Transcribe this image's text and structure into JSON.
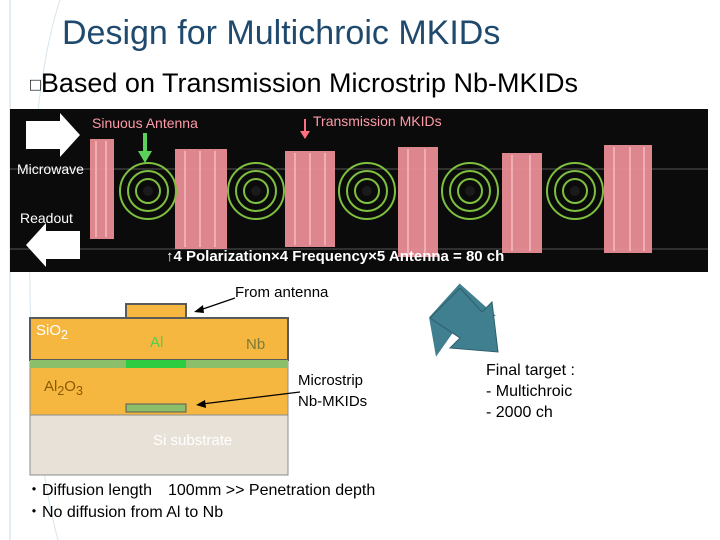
{
  "slide": {
    "title": "Design for Multichroic MKIDs",
    "subtitle_bullet": "□",
    "subtitle": "Based on Transmission Microstrip Nb-MKIDs"
  },
  "photo": {
    "label_antenna": "Sinuous Antenna",
    "label_mkids": "Transmission MKIDs",
    "label_microwave": "Microwave",
    "label_readout": "Readout",
    "label_channels": "↑4 Polarization×4 Frequency×5 Antenna = 80 ch"
  },
  "cross_section": {
    "from_antenna": "From antenna",
    "sio2_base": "SiO",
    "sio2_sub": "2",
    "al": "Al",
    "nb": "Nb",
    "al2o3_a": "Al",
    "al2o3_sub1": "2",
    "al2o3_b": "O",
    "al2o3_sub2": "3",
    "microstrip_line1": "Microstrip",
    "microstrip_line2": "Nb-MKIDs",
    "si_substrate": "Si  substrate"
  },
  "notes": {
    "line1": "・Diffusion length　100mm >> Penetration depth",
    "line2": "・No diffusion from Al to Nb"
  },
  "final_target": {
    "line1": "Final target :",
    "line2": "- Multichroic",
    "line3": "- 2000 ch"
  },
  "colors": {
    "title": "#1f4a6e",
    "sio2": "#f5b740",
    "al": "#2ecc40",
    "nb": "#8bbf6a",
    "substrate": "#e8e1d8",
    "arrow": "#3f7f8f"
  }
}
